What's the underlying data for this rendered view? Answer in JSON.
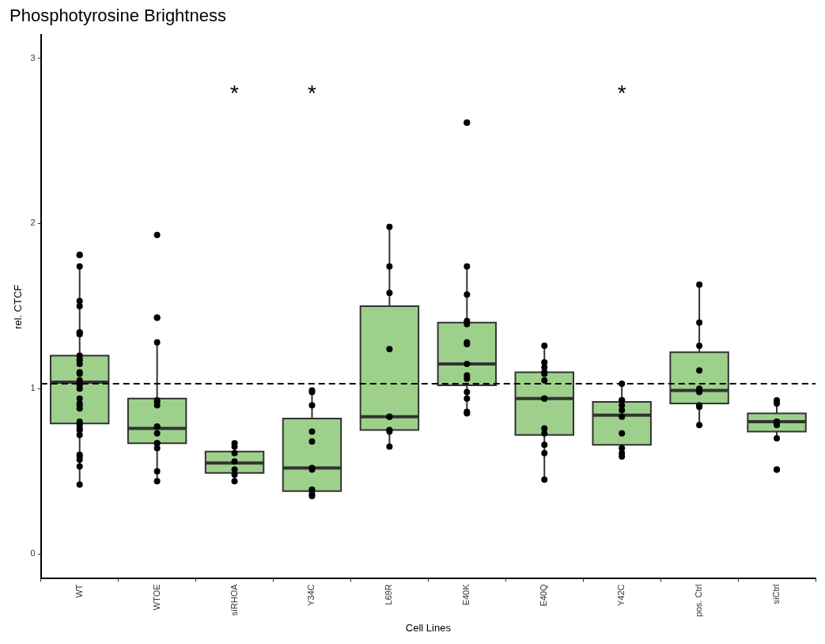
{
  "chart_data": {
    "type": "box",
    "title": "Phosphotyrosine Brightness",
    "xlabel": "Cell Lines",
    "ylabel": "rel. CTCF",
    "categories": [
      "WT",
      "WTOE",
      "siRHOA",
      "Y34C",
      "L69R",
      "E40K",
      "E40Q",
      "Y42C",
      "pos. Ctrl",
      "siCtrl"
    ],
    "ylim": [
      -0.15,
      3.14
    ],
    "yticks": [
      0,
      1,
      2,
      3
    ],
    "grid": false,
    "legend": false,
    "marker": "circle",
    "series": [
      {
        "color": "#9dd18b",
        "boxes": [
          {
            "low": 0.42,
            "q1": 0.79,
            "median": 1.04,
            "q3": 1.2,
            "high": 1.74
          },
          {
            "low": 0.44,
            "q1": 0.67,
            "median": 0.76,
            "q3": 0.94,
            "high": 1.28
          },
          {
            "low": 0.44,
            "q1": 0.49,
            "median": 0.55,
            "q3": 0.62,
            "high": 0.67
          },
          {
            "low": 0.35,
            "q1": 0.38,
            "median": 0.52,
            "q3": 0.82,
            "high": 1.0
          },
          {
            "low": 0.66,
            "q1": 0.75,
            "median": 0.83,
            "q3": 1.5,
            "high": 1.98
          },
          {
            "low": 0.85,
            "q1": 1.02,
            "median": 1.15,
            "q3": 1.4,
            "high": 1.74
          },
          {
            "low": 0.44,
            "q1": 0.72,
            "median": 0.94,
            "q3": 1.1,
            "high": 1.26
          },
          {
            "low": 0.57,
            "q1": 0.66,
            "median": 0.84,
            "q3": 0.92,
            "high": 1.03
          },
          {
            "low": 0.77,
            "q1": 0.91,
            "median": 0.99,
            "q3": 1.22,
            "high": 1.63
          },
          {
            "low": 0.69,
            "q1": 0.74,
            "median": 0.8,
            "q3": 0.85,
            "high": 0.91
          }
        ]
      },
      {
        "type": "scatter",
        "color": "#000000",
        "x": [
          "WT",
          "WT",
          "WT",
          "WT",
          "WT",
          "WT",
          "WT",
          "WT",
          "WT",
          "WT",
          "WT",
          "WT",
          "WT",
          "WT",
          "WT",
          "WT",
          "WT",
          "WT",
          "WT",
          "WT",
          "WT",
          "WT",
          "WT",
          "WT",
          "WT",
          "WT",
          "WT",
          "WT",
          "WT",
          "WT",
          "WT",
          "WT",
          "WT",
          "WTOE",
          "WTOE",
          "WTOE",
          "WTOE",
          "WTOE",
          "WTOE",
          "WTOE",
          "WTOE",
          "WTOE",
          "WTOE",
          "WTOE",
          "WTOE",
          "WTOE",
          "WTOE",
          "WTOE",
          "siRHOA",
          "siRHOA",
          "siRHOA",
          "siRHOA",
          "siRHOA",
          "siRHOA",
          "siRHOA",
          "Y34C",
          "Y34C",
          "Y34C",
          "Y34C",
          "Y34C",
          "Y34C",
          "Y34C",
          "Y34C",
          "Y34C",
          "Y34C",
          "Y34C",
          "L69R",
          "L69R",
          "L69R",
          "L69R",
          "L69R",
          "L69R",
          "L69R",
          "L69R",
          "L69R",
          "E40K",
          "E40K",
          "E40K",
          "E40K",
          "E40K",
          "E40K",
          "E40K",
          "E40K",
          "E40K",
          "E40K",
          "E40K",
          "E40K",
          "E40K",
          "E40K",
          "E40K",
          "E40Q",
          "E40Q",
          "E40Q",
          "E40Q",
          "E40Q",
          "E40Q",
          "E40Q",
          "E40Q",
          "E40Q",
          "E40Q",
          "E40Q",
          "E40Q",
          "E40Q",
          "Y42C",
          "Y42C",
          "Y42C",
          "Y42C",
          "Y42C",
          "Y42C",
          "Y42C",
          "Y42C",
          "Y42C",
          "Y42C",
          "pos. Ctrl",
          "pos. Ctrl",
          "pos. Ctrl",
          "pos. Ctrl",
          "pos. Ctrl",
          "pos. Ctrl",
          "pos. Ctrl",
          "pos. Ctrl",
          "pos. Ctrl",
          "pos. Ctrl",
          "siCtrl",
          "siCtrl",
          "siCtrl",
          "siCtrl",
          "siCtrl",
          "siCtrl",
          "siCtrl",
          "siCtrl",
          "siCtrl"
        ],
        "values": [
          1.81,
          1.81,
          1.74,
          1.53,
          1.5,
          1.34,
          1.33,
          1.34,
          1.2,
          1.18,
          1.17,
          1.15,
          1.1,
          1.09,
          1.05,
          1.03,
          1.02,
          1.0,
          0.94,
          0.91,
          0.9,
          0.88,
          0.8,
          0.79,
          0.78,
          0.76,
          0.75,
          0.72,
          0.6,
          0.59,
          0.57,
          0.53,
          0.42,
          1.93,
          1.43,
          1.43,
          1.28,
          0.93,
          0.92,
          0.9,
          0.77,
          0.77,
          0.73,
          0.67,
          0.67,
          0.64,
          0.5,
          0.44,
          0.67,
          0.65,
          0.61,
          0.56,
          0.51,
          0.48,
          0.44,
          0.99,
          0.98,
          0.9,
          0.74,
          0.68,
          0.52,
          0.51,
          0.39,
          0.38,
          0.36,
          0.35,
          1.98,
          1.74,
          1.58,
          1.24,
          0.83,
          0.83,
          0.75,
          0.74,
          0.65,
          2.61,
          2.61,
          1.74,
          1.57,
          1.41,
          1.39,
          1.28,
          1.27,
          1.15,
          1.08,
          1.06,
          0.98,
          0.94,
          0.86,
          0.85,
          1.26,
          1.16,
          1.13,
          1.1,
          1.09,
          1.05,
          0.94,
          0.94,
          0.76,
          0.73,
          0.66,
          0.61,
          0.45,
          1.03,
          0.93,
          0.93,
          0.9,
          0.87,
          0.83,
          0.73,
          0.64,
          0.61,
          0.59,
          1.63,
          1.4,
          1.26,
          1.11,
          1.0,
          0.99,
          0.98,
          0.9,
          0.89,
          0.78,
          0.93,
          0.91,
          0.8,
          0.8,
          0.79,
          0.78,
          0.7,
          0.51,
          0.51
        ]
      }
    ],
    "ref_lines": [
      {
        "axis": "y",
        "value": 1.03,
        "color": "#000000",
        "line_style": "dashed"
      }
    ],
    "annotations": [
      "*",
      "*",
      "*"
    ]
  }
}
